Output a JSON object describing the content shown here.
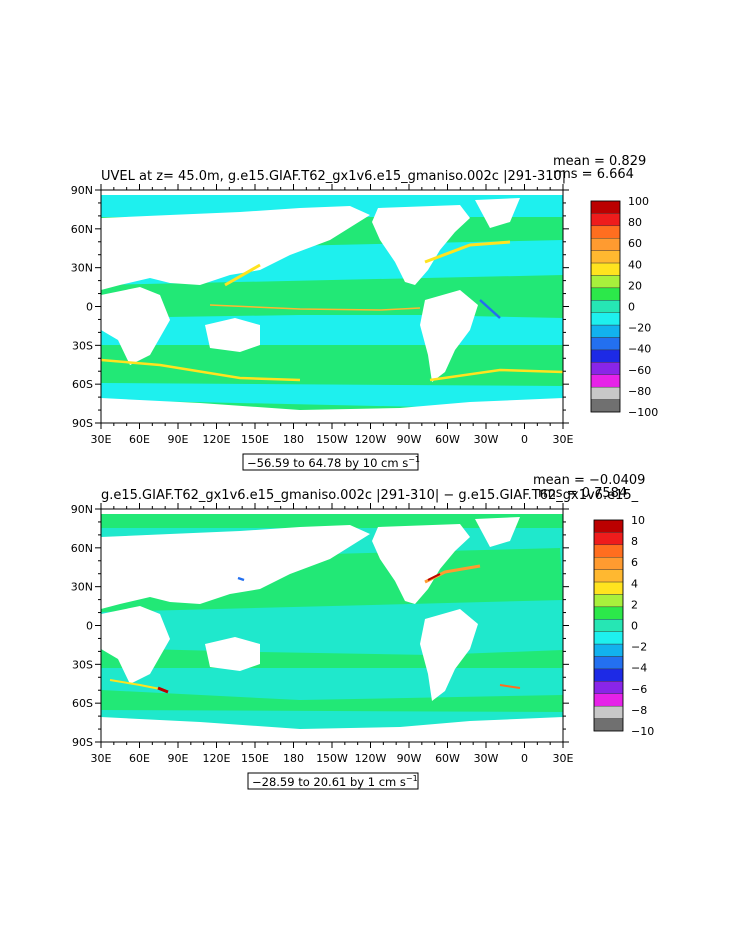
{
  "chart_data": [
    {
      "type": "heatmap",
      "title": "UVEL at z=  45.0m, g.e15.GIAF.T62_gx1v6.e15_gmaniso.002c |291-310|",
      "stats": {
        "mean": "mean = 0.829",
        "rms": "rms = 6.664"
      },
      "x_ticks": [
        "30E",
        "60E",
        "90E",
        "120E",
        "150E",
        "180",
        "150W",
        "120W",
        "90W",
        "60W",
        "30W",
        "0",
        "30E"
      ],
      "y_ticks": [
        "90N",
        "60N",
        "30N",
        "0",
        "30S",
        "60S",
        "90S"
      ],
      "range_label": "−56.59 to 64.78 by 10 cm s",
      "range_unit_exp": "−1",
      "colorbar_levels": [
        "100",
        "80",
        "60",
        "40",
        "20",
        "0",
        "−20",
        "−40",
        "−60",
        "−80",
        "−100"
      ],
      "colorbar_values": [
        100,
        80,
        60,
        40,
        20,
        0,
        -20,
        -40,
        -60,
        -80,
        -100
      ],
      "vmin": -100,
      "vmax": 100
    },
    {
      "type": "heatmap",
      "title": "g.e15.GIAF.T62_gx1v6.e15_gmaniso.002c |291-310| − g.e15.GIAF.T62_gx1v6.e15_",
      "stats": {
        "mean": "mean = −0.0409",
        "rms": "rms = 0.7584"
      },
      "x_ticks": [
        "30E",
        "60E",
        "90E",
        "120E",
        "150E",
        "180",
        "150W",
        "120W",
        "90W",
        "60W",
        "30W",
        "0",
        "30E"
      ],
      "y_ticks": [
        "90N",
        "60N",
        "30N",
        "0",
        "30S",
        "60S",
        "90S"
      ],
      "range_label": "−28.59 to 20.61 by 1 cm s",
      "range_unit_exp": "−1",
      "colorbar_levels": [
        "10",
        "8",
        "6",
        "4",
        "2",
        "0",
        "−2",
        "−4",
        "−6",
        "−8",
        "−10"
      ],
      "colorbar_values": [
        10,
        8,
        6,
        4,
        2,
        0,
        -2,
        -4,
        -6,
        -8,
        -10
      ],
      "vmin": -10,
      "vmax": 10
    }
  ],
  "colors": {
    "ocean_base_1": "#22e876",
    "ocean_base_2": "#1fe8cc",
    "land": "#ffffff",
    "scale": [
      "#bb0000",
      "#ee1c1c",
      "#ff6e1f",
      "#ff9b30",
      "#ffb830",
      "#ffe31f",
      "#a8f03c",
      "#2ce84a",
      "#26e6b4",
      "#1ef0ee",
      "#12b2ee",
      "#2370f0",
      "#1d2ae6",
      "#8a25e8",
      "#e622e8",
      "#c8c8c8",
      "#707070"
    ]
  }
}
